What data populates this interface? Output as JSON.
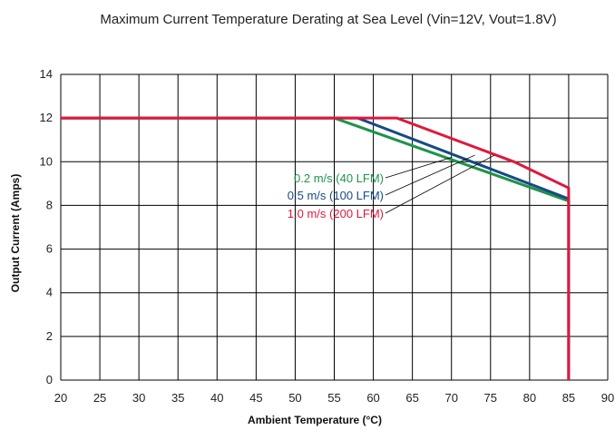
{
  "chart_data": {
    "type": "line",
    "title": "Maximum Current Temperature Derating at Sea Level (Vin=12V, Vout=1.8V)",
    "xlabel": "Ambient Temperature (°C)",
    "ylabel": "Output Current (Amps)",
    "xlim": [
      20,
      90
    ],
    "ylim": [
      0,
      14
    ],
    "xticks": [
      20,
      25,
      30,
      35,
      40,
      45,
      50,
      55,
      60,
      65,
      70,
      75,
      80,
      85,
      90
    ],
    "yticks": [
      0,
      2,
      4,
      6,
      8,
      10,
      12,
      14
    ],
    "grid": true,
    "series": [
      {
        "name": "0.2 m/s (40 LFM)",
        "color": "#1e9448",
        "x": [
          20,
          55,
          85,
          85
        ],
        "y": [
          12,
          12,
          8.2,
          0
        ]
      },
      {
        "name": "0.5 m/s (100 LFM)",
        "color": "#174a86",
        "x": [
          20,
          58,
          85,
          85
        ],
        "y": [
          12,
          12,
          8.3,
          0
        ]
      },
      {
        "name": "1.0 m/s (200 LFM)",
        "color": "#e0173c",
        "x": [
          20,
          63,
          78,
          85,
          85
        ],
        "y": [
          12,
          12,
          10,
          8.8,
          0
        ]
      }
    ],
    "annotations": [
      {
        "text": "0.2 m/s (40 LFM)",
        "color": "#1e9448",
        "points_to": [
          70,
          10.2
        ]
      },
      {
        "text": "0.5 m/s (100 LFM)",
        "color": "#174a86",
        "points_to": [
          73,
          10.3
        ]
      },
      {
        "text": "1.0 m/s (200 LFM)",
        "color": "#e0173c",
        "points_to": [
          75.5,
          10.3
        ]
      }
    ]
  }
}
